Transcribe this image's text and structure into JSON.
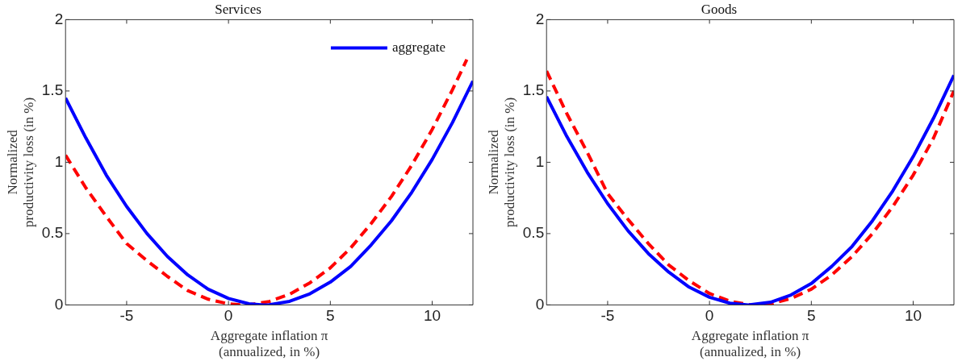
{
  "chart_data": [
    {
      "type": "line",
      "title": "Services",
      "xlabel": "Aggregate inflation π\n(annualized, in %)",
      "ylabel": "Normalized\nproductivity loss (in %)",
      "xlim": [
        -8,
        12
      ],
      "xticks": [
        -5,
        0,
        5,
        10
      ],
      "ylim": [
        0,
        2
      ],
      "yticks": [
        0,
        0.5,
        1,
        1.5,
        2
      ],
      "grid": false,
      "legend": "top right",
      "marker": "none",
      "series": [
        {
          "name": "aggregate",
          "color": "#0000ff",
          "line_style": "solid",
          "x": [
            -8,
            -7,
            -6,
            -5,
            -4,
            -3,
            -2,
            -1,
            0,
            1,
            1.7,
            2,
            3,
            4,
            5,
            6,
            7,
            8,
            9,
            10,
            11,
            12
          ],
          "values": [
            1.45,
            1.17,
            0.91,
            0.69,
            0.5,
            0.34,
            0.21,
            0.11,
            0.045,
            0.008,
            0,
            0.001,
            0.025,
            0.078,
            0.16,
            0.27,
            0.42,
            0.59,
            0.79,
            1.02,
            1.28,
            1.57
          ]
        },
        {
          "color": "#ff0000",
          "line_style": "dashed",
          "x": [
            -8,
            -7,
            -6,
            -5,
            -4,
            -3,
            -2,
            -1,
            0,
            0.7,
            1,
            2,
            3,
            4,
            5,
            6,
            7,
            8,
            9,
            10,
            11,
            11.7
          ],
          "values": [
            1.05,
            0.82,
            0.62,
            0.43,
            0.31,
            0.2,
            0.1,
            0.04,
            0.007,
            0,
            0.001,
            0.024,
            0.075,
            0.155,
            0.26,
            0.4,
            0.57,
            0.76,
            0.98,
            1.23,
            1.51,
            1.72
          ]
        }
      ]
    },
    {
      "type": "line",
      "title": "Goods",
      "xlabel": "Aggregate inflation π\n(annualized, in %)",
      "ylabel": "Normalized\nproductivity loss (in %)",
      "xlim": [
        -8,
        12
      ],
      "xticks": [
        -5,
        0,
        5,
        10
      ],
      "ylim": [
        0,
        2
      ],
      "yticks": [
        0,
        0.5,
        1,
        1.5,
        2
      ],
      "grid": false,
      "marker": "none",
      "series": [
        {
          "color": "#0000ff",
          "line_style": "solid",
          "x": [
            -8,
            -7,
            -6,
            -5,
            -4,
            -3,
            -2,
            -1,
            0,
            1,
            1.9,
            3,
            4,
            5,
            6,
            7,
            8,
            9,
            10,
            11,
            12
          ],
          "values": [
            1.46,
            1.18,
            0.93,
            0.71,
            0.52,
            0.36,
            0.23,
            0.125,
            0.054,
            0.012,
            0,
            0.019,
            0.07,
            0.15,
            0.27,
            0.41,
            0.59,
            0.8,
            1.04,
            1.31,
            1.61
          ]
        },
        {
          "color": "#ff0000",
          "line_style": "dashed",
          "x": [
            -8,
            -7,
            -6,
            -5,
            -4,
            -3,
            -2,
            -1,
            0,
            1,
            2,
            2.3,
            3,
            4,
            5,
            6,
            7,
            8,
            9,
            10,
            11,
            12
          ],
          "values": [
            1.64,
            1.34,
            1.07,
            0.78,
            0.6,
            0.43,
            0.28,
            0.17,
            0.08,
            0.026,
            0.001,
            0,
            0.008,
            0.045,
            0.11,
            0.21,
            0.34,
            0.5,
            0.69,
            0.91,
            1.17,
            1.5
          ]
        }
      ]
    }
  ]
}
